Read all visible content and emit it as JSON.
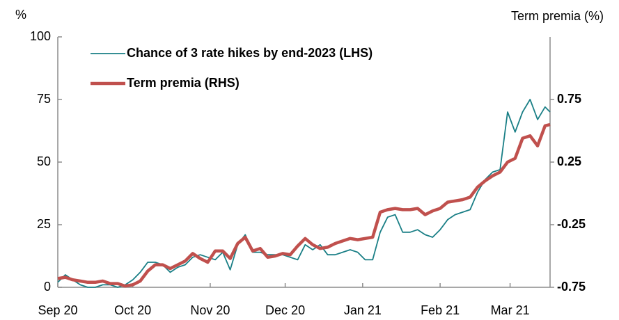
{
  "chart_data": {
    "type": "line",
    "ylabel": "%",
    "y2label": "Term premia (%)",
    "x": [
      0,
      3,
      6,
      9,
      12,
      15,
      18,
      21,
      24,
      27,
      30,
      33,
      36,
      39,
      42,
      45,
      48,
      51,
      54,
      57,
      60,
      63,
      66,
      69,
      72,
      75,
      78,
      81,
      84,
      87,
      90,
      93,
      96,
      99,
      102,
      105,
      108,
      111,
      114,
      117,
      120,
      123,
      126,
      129,
      132,
      135,
      138,
      141,
      144,
      147,
      150,
      153,
      156,
      159,
      162,
      165,
      168,
      171,
      174,
      177,
      180,
      183,
      186,
      189,
      192,
      195,
      197
    ],
    "xlim": [
      0,
      197
    ],
    "xticks": [
      {
        "value": 0,
        "label": "Sep 20"
      },
      {
        "value": 30,
        "label": "Oct 20"
      },
      {
        "value": 61,
        "label": "Nov 20"
      },
      {
        "value": 91,
        "label": "Dec 20"
      },
      {
        "value": 122,
        "label": "Jan 21"
      },
      {
        "value": 153,
        "label": "Feb 21"
      },
      {
        "value": 181,
        "label": "Mar 21"
      }
    ],
    "ylim": [
      0,
      100
    ],
    "yticks": [
      0,
      25,
      50,
      75,
      100
    ],
    "y2lim": [
      -0.75,
      1.25
    ],
    "y2ticks": [
      -0.75,
      -0.25,
      0.25,
      0.75
    ],
    "legend": "upper left",
    "series": [
      {
        "name": "Chance of 3 rate hikes by end-2023 (LHS)",
        "color": "#1a7f86",
        "values": [
          2,
          5,
          3,
          1,
          0,
          0,
          1,
          1,
          0,
          1,
          3,
          6,
          10,
          10,
          9,
          6,
          8,
          9,
          12,
          13,
          12,
          11,
          14,
          7,
          17,
          21,
          14,
          14,
          13,
          13,
          13,
          12,
          11,
          17,
          15,
          17,
          13,
          13,
          14,
          15,
          14,
          11,
          11,
          22,
          28,
          29,
          22,
          22,
          23,
          21,
          20,
          23,
          27,
          29,
          30,
          31,
          38,
          43,
          46,
          47,
          70,
          62,
          70,
          75,
          67,
          72,
          70
        ]
      },
      {
        "name": "Term premia (RHS)",
        "color": "#c0504d",
        "axis": "y2",
        "values": [
          -0.68,
          -0.67,
          -0.69,
          -0.7,
          -0.71,
          -0.71,
          -0.7,
          -0.72,
          -0.72,
          -0.74,
          -0.73,
          -0.7,
          -0.62,
          -0.57,
          -0.57,
          -0.6,
          -0.57,
          -0.54,
          -0.48,
          -0.52,
          -0.55,
          -0.46,
          -0.46,
          -0.52,
          -0.4,
          -0.35,
          -0.46,
          -0.44,
          -0.51,
          -0.5,
          -0.48,
          -0.49,
          -0.42,
          -0.36,
          -0.41,
          -0.44,
          -0.43,
          -0.4,
          -0.38,
          -0.36,
          -0.37,
          -0.36,
          -0.35,
          -0.15,
          -0.13,
          -0.12,
          -0.13,
          -0.13,
          -0.12,
          -0.17,
          -0.14,
          -0.12,
          -0.07,
          -0.06,
          -0.05,
          -0.03,
          0.05,
          0.1,
          0.14,
          0.17,
          0.25,
          0.28,
          0.44,
          0.46,
          0.38,
          0.54,
          0.55
        ]
      }
    ]
  }
}
